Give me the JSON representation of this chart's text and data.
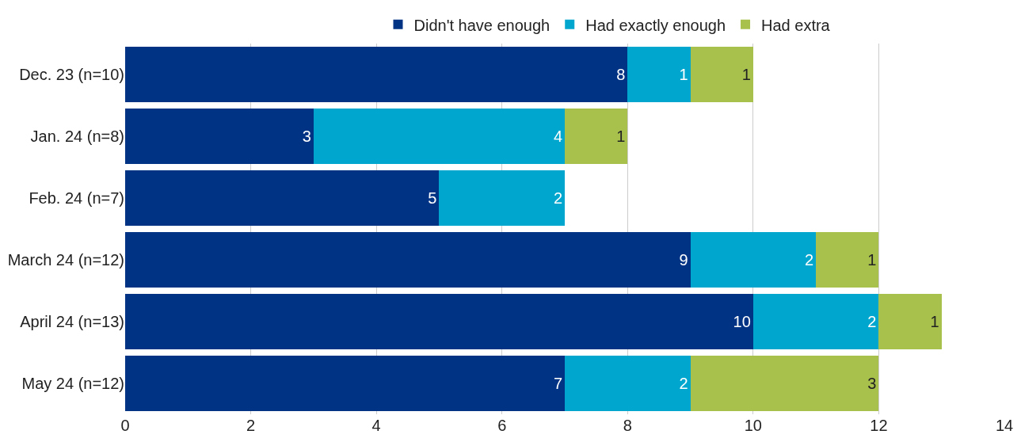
{
  "chart_data": {
    "type": "bar",
    "orientation": "horizontal",
    "stacked": true,
    "data_labels": true,
    "categories": [
      "Dec. 23 (n=10)",
      "Jan. 24 (n=8)",
      "Feb. 24 (n=7)",
      "March 24 (n=12)",
      "April 24 (n=13)",
      "May 24 (n=12)"
    ],
    "series": [
      {
        "name": "Didn't have enough",
        "color": "#003383",
        "values": [
          8,
          3,
          5,
          9,
          10,
          7
        ]
      },
      {
        "name": "Had exactly enough",
        "color": "#00a6ce",
        "values": [
          1,
          4,
          2,
          2,
          2,
          2
        ]
      },
      {
        "name": "Had extra",
        "color": "#a7c14c",
        "values": [
          1,
          1,
          null,
          1,
          1,
          3
        ]
      }
    ],
    "xlim": [
      0,
      14
    ],
    "xticks": [
      0,
      2,
      4,
      6,
      8,
      10,
      12,
      14
    ],
    "grid": "x",
    "legend": "top"
  }
}
